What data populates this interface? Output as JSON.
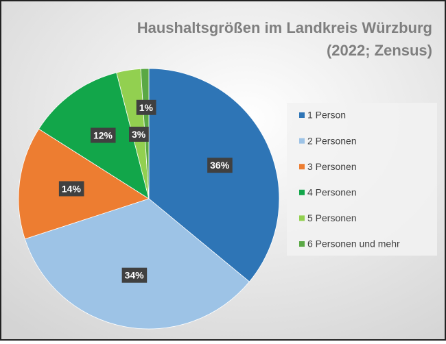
{
  "chart_data": {
    "type": "pie",
    "title": "Haushaltsgrößen im Landkreis Würzburg",
    "subtitle": "(2022; Zensus)",
    "categories": [
      "1 Person",
      "2 Personen",
      "3 Personen",
      "4 Personen",
      "5 Personen",
      "6 Personen und mehr"
    ],
    "values": [
      36,
      34,
      14,
      12,
      3,
      1
    ],
    "value_labels": [
      "36%",
      "34%",
      "14%",
      "12%",
      "3%",
      "1%"
    ],
    "colors": [
      "#2e75b6",
      "#9dc3e6",
      "#ed7d31",
      "#12a64a",
      "#92d050",
      "#5aa845"
    ],
    "legend": "right"
  }
}
